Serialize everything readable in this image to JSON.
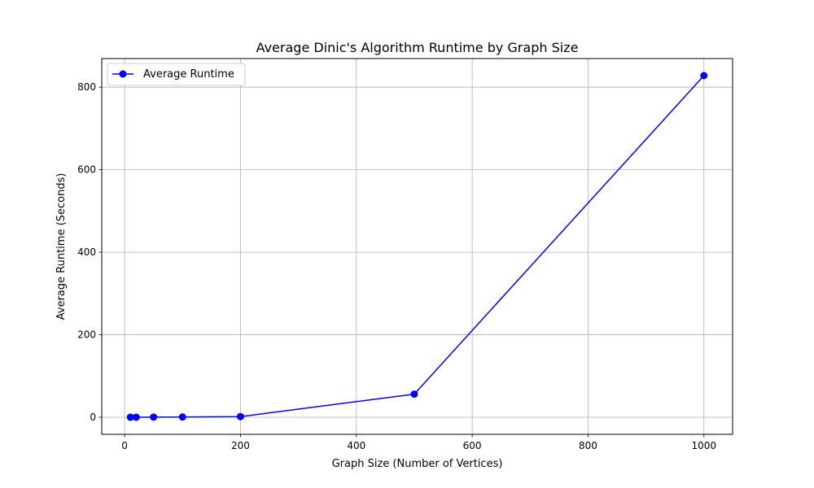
{
  "chart_data": {
    "type": "line",
    "title": "Average Dinic's Algorithm Runtime by Graph Size",
    "xlabel": "Graph Size (Number of Vertices)",
    "ylabel": "Average Runtime (Seconds)",
    "x": [
      10,
      20,
      50,
      100,
      200,
      500,
      1000
    ],
    "series": [
      {
        "name": "Average Runtime",
        "values": [
          0.05,
          0.1,
          0.3,
          0.5,
          1.5,
          56,
          828
        ],
        "color": "#0000ff",
        "marker": "circle"
      }
    ],
    "xlim": [
      -39.5,
      1049.5
    ],
    "ylim": [
      -41.4,
      869.4
    ],
    "xticks": [
      0,
      200,
      400,
      600,
      800,
      1000
    ],
    "yticks": [
      0,
      200,
      400,
      600,
      800
    ],
    "grid": true,
    "legend_position": "upper-left"
  }
}
